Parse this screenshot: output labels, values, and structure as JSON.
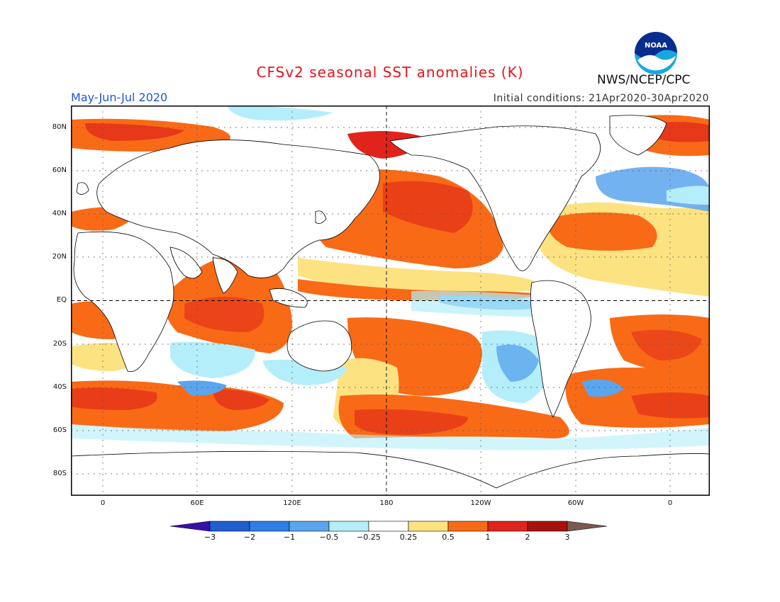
{
  "header": {
    "title": "CFSv2 seasonal SST anomalies (K)",
    "season": "May-Jun-Jul 2020",
    "initial_conditions": "Initial conditions: 21Apr2020-30Apr2020",
    "agency": "NWS/NCEP/CPC",
    "logo_text": "NOAA"
  },
  "map": {
    "lat_ticks": [
      "80N",
      "60N",
      "40N",
      "20N",
      "EQ",
      "20S",
      "40S",
      "60S",
      "80S"
    ],
    "lon_ticks": [
      "0",
      "60E",
      "120E",
      "180",
      "120W",
      "60W",
      "0"
    ]
  },
  "colorbar": {
    "labels": [
      "−3",
      "−2",
      "−1",
      "−0.5",
      "−0.25",
      "0.25",
      "0.5",
      "1",
      "2",
      "3"
    ],
    "colors": [
      "#3a0fa8",
      "#1f5fd0",
      "#2f7de6",
      "#5aa5ee",
      "#b4eefa",
      "#ffffff",
      "#fde282",
      "#f96a16",
      "#e0241b",
      "#a8110f",
      "#7a5a4e"
    ]
  }
}
